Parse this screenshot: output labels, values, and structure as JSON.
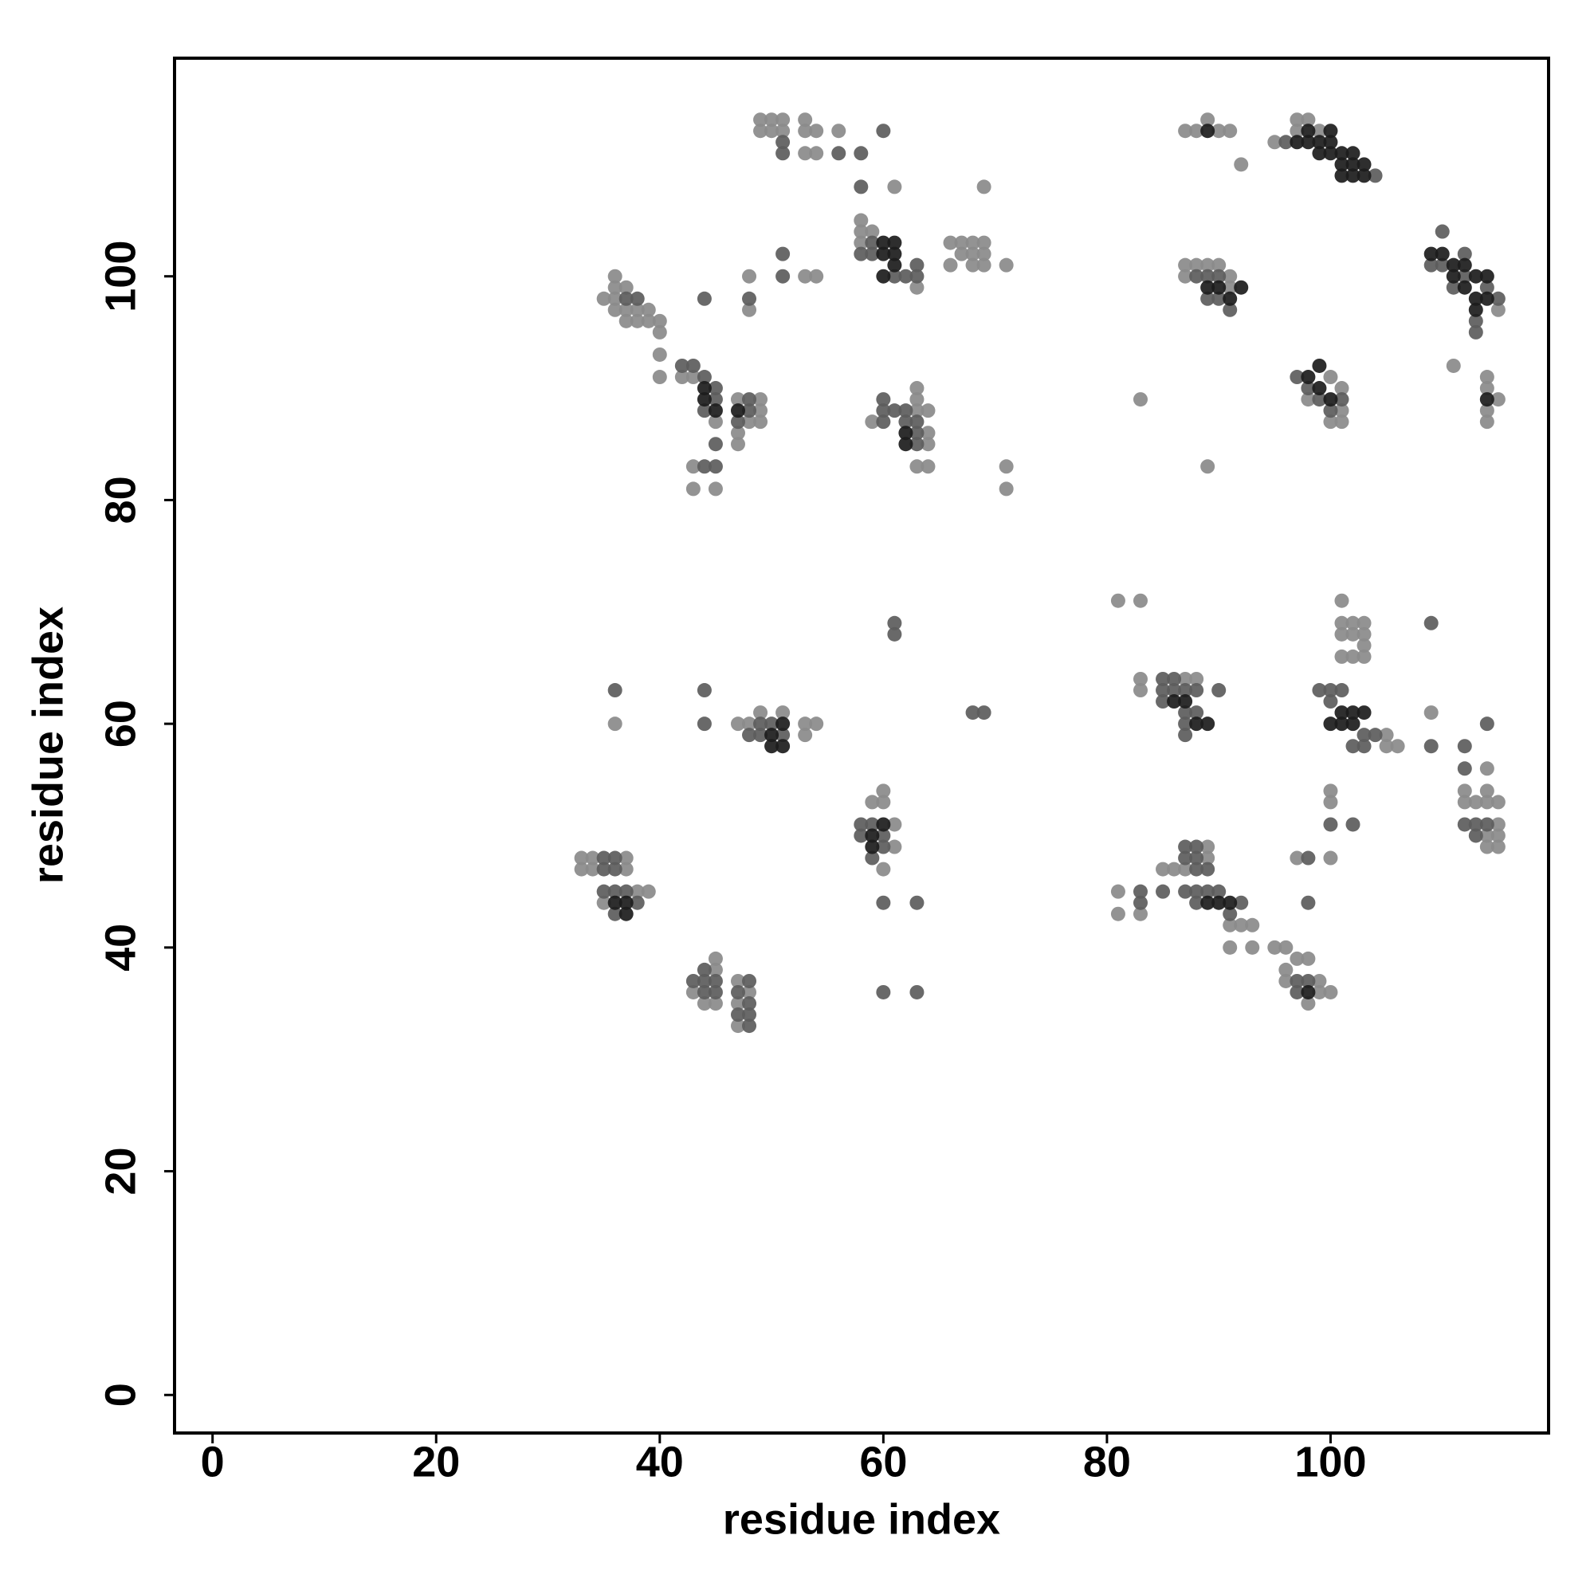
{
  "chart_data": {
    "type": "scatter",
    "x_label": "residue index",
    "y_label": "residue index",
    "xlim": [
      -3.4,
      119.5
    ],
    "ylim": [
      -3.4,
      119.5
    ],
    "xticks": [
      0,
      20,
      40,
      60,
      80,
      100
    ],
    "yticks": [
      0,
      20,
      40,
      60,
      80,
      100
    ],
    "series": [
      {
        "color": "#8a8a8a",
        "x": [
          49,
          50,
          51,
          49,
          50,
          51,
          53,
          53,
          54,
          53,
          54,
          56,
          61,
          69,
          87,
          88,
          89,
          90,
          91,
          92,
          95,
          97,
          98,
          97,
          99,
          58,
          58,
          59,
          58,
          66,
          67,
          68,
          69,
          66,
          67,
          68,
          69,
          68,
          69,
          71,
          53,
          54,
          48,
          48,
          63,
          36,
          36,
          37,
          35,
          36,
          39,
          36,
          37,
          38,
          37,
          38,
          39,
          40,
          40,
          40,
          40,
          42,
          43,
          45,
          43,
          43,
          45,
          47,
          49,
          49,
          49,
          48,
          47,
          47,
          59,
          63,
          64,
          64,
          64,
          63,
          63,
          63,
          64,
          71,
          71,
          83,
          89,
          87,
          88,
          89,
          90,
          87,
          91,
          91,
          100,
          101,
          101,
          100,
          101,
          98,
          114,
          114,
          115,
          114,
          114,
          111,
          115,
          81,
          83,
          101,
          101,
          102,
          103,
          101,
          102,
          103,
          103,
          101,
          102,
          103,
          83,
          83,
          87,
          88,
          105,
          105,
          106,
          109,
          114,
          114,
          114,
          112,
          112,
          113,
          115,
          115,
          114,
          115,
          114,
          115,
          100,
          100,
          100,
          97,
          36,
          47,
          48,
          49,
          51,
          53,
          54,
          53,
          59,
          60,
          60,
          61,
          61,
          60,
          33,
          34,
          37,
          33,
          34,
          37,
          39,
          38,
          35,
          45,
          45,
          43,
          44,
          45,
          47,
          48,
          47,
          47,
          81,
          81,
          83,
          85,
          86,
          87,
          89,
          89,
          91,
          92,
          93,
          91,
          93,
          95,
          96,
          97,
          98,
          96,
          96,
          99,
          99,
          100,
          98
        ],
        "values": [
          114,
          114,
          114,
          113,
          113,
          113,
          114,
          113,
          113,
          111,
          111,
          113,
          108,
          108,
          113,
          113,
          114,
          113,
          113,
          110,
          112,
          114,
          114,
          113,
          113,
          105,
          104,
          104,
          103,
          103,
          103,
          103,
          103,
          101,
          102,
          102,
          102,
          101,
          101,
          101,
          100,
          100,
          100,
          97,
          99,
          100,
          99,
          99,
          98,
          98,
          97,
          97,
          97,
          97,
          96,
          96,
          96,
          96,
          95,
          93,
          91,
          91,
          91,
          87,
          83,
          81,
          81,
          89,
          89,
          88,
          87,
          87,
          86,
          85,
          87,
          88,
          88,
          86,
          85,
          90,
          89,
          83,
          83,
          83,
          81,
          89,
          83,
          101,
          101,
          101,
          101,
          100,
          100,
          99,
          91,
          90,
          88,
          87,
          87,
          89,
          91,
          90,
          89,
          88,
          87,
          92,
          97,
          71,
          71,
          71,
          69,
          69,
          69,
          68,
          68,
          68,
          67,
          66,
          66,
          66,
          64,
          63,
          64,
          64,
          59,
          58,
          58,
          61,
          56,
          54,
          53,
          54,
          53,
          53,
          53,
          51,
          50,
          50,
          49,
          49,
          54,
          53,
          48,
          48,
          60,
          60,
          60,
          61,
          61,
          60,
          60,
          59,
          53,
          54,
          53,
          51,
          49,
          47,
          48,
          48,
          48,
          47,
          47,
          47,
          45,
          45,
          44,
          39,
          38,
          36,
          35,
          35,
          37,
          36,
          35,
          33,
          45,
          43,
          43,
          47,
          47,
          47,
          49,
          48,
          42,
          42,
          42,
          40,
          40,
          40,
          40,
          39,
          39,
          38,
          37,
          37,
          36,
          36,
          35
        ]
      },
      {
        "color": "#5c5c5c",
        "x": [
          51,
          51,
          56,
          58,
          60,
          58,
          96,
          104,
          59,
          58,
          59,
          62,
          63,
          63,
          61,
          51,
          51,
          44,
          48,
          37,
          38,
          42,
          43,
          44,
          45,
          45,
          44,
          45,
          45,
          44,
          48,
          48,
          47,
          60,
          60,
          60,
          61,
          62,
          62,
          63,
          63,
          63,
          88,
          89,
          90,
          89,
          90,
          91,
          97,
          98,
          99,
          100,
          101,
          110,
          109,
          110,
          112,
          112,
          111,
          114,
          115,
          113,
          113,
          85,
          86,
          85,
          86,
          87,
          88,
          85,
          87,
          88,
          87,
          87,
          90,
          99,
          100,
          101,
          100,
          103,
          104,
          102,
          103,
          109,
          109,
          112,
          112,
          114,
          112,
          113,
          114,
          113,
          100,
          102,
          98,
          98,
          36,
          44,
          44,
          49,
          50,
          51,
          48,
          49,
          58,
          59,
          58,
          60,
          60,
          59,
          61,
          61,
          68,
          69,
          36,
          35,
          35,
          36,
          35,
          38,
          36,
          37,
          36,
          43,
          44,
          44,
          45,
          44,
          45,
          48,
          47,
          48,
          47,
          48,
          48,
          87,
          88,
          87,
          88,
          88,
          89,
          85,
          83,
          83,
          87,
          88,
          89,
          90,
          88,
          91,
          92,
          97,
          98,
          97,
          60,
          63,
          60,
          63
        ],
        "values": [
          112,
          111,
          111,
          111,
          113,
          108,
          112,
          109,
          103,
          102,
          102,
          100,
          101,
          100,
          100,
          102,
          100,
          98,
          98,
          98,
          98,
          92,
          92,
          91,
          90,
          89,
          88,
          85,
          83,
          83,
          89,
          88,
          87,
          89,
          88,
          87,
          88,
          88,
          87,
          87,
          86,
          85,
          100,
          100,
          100,
          98,
          98,
          97,
          91,
          90,
          89,
          88,
          89,
          104,
          101,
          101,
          102,
          100,
          99,
          99,
          98,
          96,
          95,
          64,
          64,
          63,
          63,
          63,
          63,
          62,
          61,
          61,
          60,
          59,
          63,
          63,
          63,
          63,
          62,
          59,
          59,
          58,
          58,
          69,
          58,
          58,
          56,
          60,
          51,
          51,
          51,
          50,
          51,
          51,
          48,
          44,
          63,
          63,
          60,
          60,
          60,
          59,
          59,
          59,
          51,
          51,
          50,
          50,
          49,
          48,
          69,
          68,
          61,
          61,
          48,
          48,
          47,
          47,
          45,
          44,
          43,
          45,
          45,
          37,
          38,
          37,
          37,
          36,
          36,
          37,
          36,
          35,
          34,
          34,
          33,
          49,
          49,
          48,
          48,
          47,
          47,
          45,
          45,
          44,
          45,
          45,
          45,
          45,
          44,
          43,
          44,
          37,
          37,
          36,
          44,
          44,
          36,
          36
        ]
      },
      {
        "color": "#1c1c1c",
        "x": [
          89,
          98,
          100,
          97,
          98,
          99,
          100,
          99,
          100,
          101,
          101,
          102,
          102,
          103,
          101,
          102,
          103,
          60,
          61,
          60,
          61,
          61,
          60,
          109,
          110,
          111,
          112,
          111,
          113,
          114,
          112,
          113,
          114,
          113,
          114,
          99,
          98,
          99,
          100,
          89,
          90,
          92,
          91,
          100,
          101,
          101,
          102,
          103,
          102,
          86,
          87,
          88,
          89,
          36,
          37,
          37,
          50,
          51,
          50,
          51,
          47,
          44,
          44,
          45,
          60,
          59,
          59,
          62,
          62,
          89,
          90,
          91,
          98
        ],
        "values": [
          113,
          113,
          113,
          112,
          112,
          112,
          112,
          111,
          111,
          111,
          110,
          111,
          110,
          110,
          109,
          109,
          109,
          103,
          103,
          102,
          102,
          101,
          100,
          102,
          102,
          101,
          101,
          100,
          100,
          100,
          99,
          98,
          98,
          97,
          89,
          92,
          91,
          90,
          89,
          99,
          99,
          99,
          98,
          60,
          60,
          61,
          61,
          61,
          60,
          62,
          62,
          60,
          60,
          44,
          44,
          43,
          59,
          60,
          58,
          58,
          88,
          90,
          89,
          88,
          51,
          50,
          49,
          86,
          85,
          44,
          44,
          44,
          36
        ]
      }
    ]
  }
}
